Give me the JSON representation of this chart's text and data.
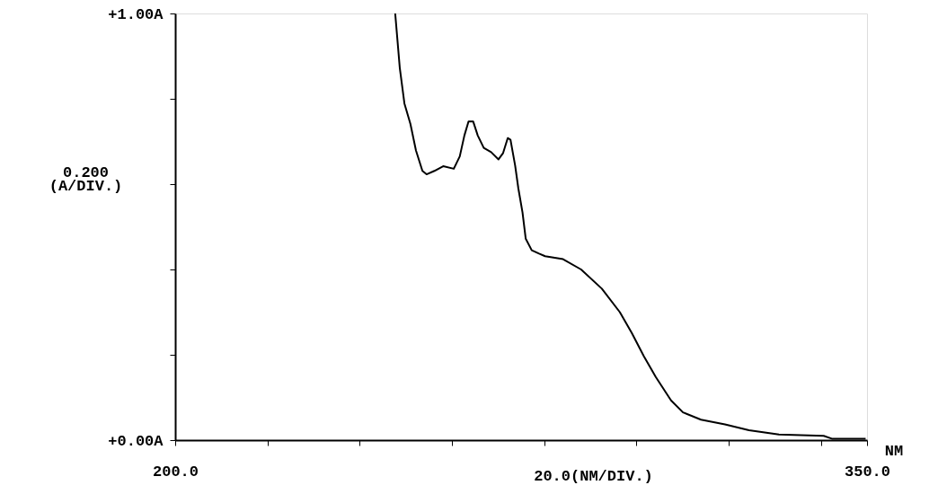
{
  "chart_data": {
    "type": "line",
    "xlabel": "20.0(NM/DIV.)",
    "ylabel": "0.200\n(A/DIV.)",
    "annotations": [
      "NM"
    ],
    "x": [
      247.7,
      248.7,
      249.7,
      251.0,
      252.2,
      253.6,
      254.5,
      256.2,
      258.1,
      260.4,
      261.7,
      262.7,
      263.6,
      264.6,
      265.6,
      266.9,
      268.5,
      270.1,
      271.1,
      272.1,
      272.7,
      273.7,
      274.4,
      275.3,
      276.0,
      277.3,
      278.9,
      280.2,
      284.1,
      288.0,
      292.5,
      296.4,
      299.0,
      301.6,
      304.2,
      307.5,
      310.1,
      314.0,
      319.2,
      324.4,
      330.9,
      340.6,
      342.5,
      349.7
    ],
    "series": [
      {
        "color": "#000000",
        "values": [
          1.0,
          0.872,
          0.789,
          0.741,
          0.679,
          0.631,
          0.623,
          0.631,
          0.642,
          0.636,
          0.665,
          0.714,
          0.747,
          0.747,
          0.714,
          0.685,
          0.675,
          0.658,
          0.673,
          0.708,
          0.704,
          0.644,
          0.59,
          0.534,
          0.472,
          0.445,
          0.437,
          0.431,
          0.424,
          0.4,
          0.355,
          0.3,
          0.251,
          0.197,
          0.148,
          0.093,
          0.065,
          0.048,
          0.037,
          0.023,
          0.013,
          0.01,
          0.003,
          0.003
        ]
      }
    ],
    "xlim": [
      200,
      350
    ],
    "xticks": [
      {
        "value": 200,
        "label": "200.0"
      },
      {
        "value": 220,
        "label": null
      },
      {
        "value": 240,
        "label": null
      },
      {
        "value": 260,
        "label": null
      },
      {
        "value": 280,
        "label": null
      },
      {
        "value": 300,
        "label": null
      },
      {
        "value": 320,
        "label": null
      },
      {
        "value": 340,
        "label": null
      },
      {
        "value": 350,
        "label": "350.0"
      }
    ],
    "ylim": [
      0,
      1
    ],
    "yticks": [
      {
        "value": 0,
        "label": "+0.00A"
      },
      {
        "value": 0.2,
        "label": null
      },
      {
        "value": 0.4,
        "label": null
      },
      {
        "value": 0.6,
        "label": null
      },
      {
        "value": 0.8,
        "label": null
      },
      {
        "value": 1,
        "label": "+1.00A"
      }
    ],
    "grid": false,
    "marker": "none",
    "line_style": "solid"
  }
}
